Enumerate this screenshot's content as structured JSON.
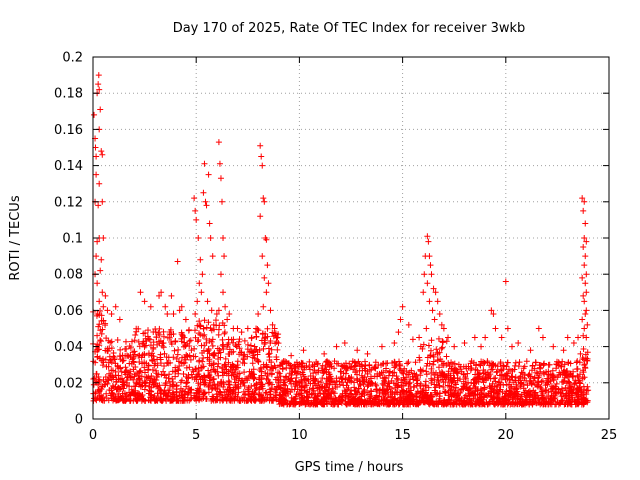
{
  "chart_data": {
    "type": "scatter",
    "title": "Day 170 of 2025, Rate Of TEC Index for receiver 3wkb",
    "xlabel": "GPS time / hours",
    "ylabel": "ROTI / TECUs",
    "xlim": [
      0,
      25
    ],
    "ylim": [
      0,
      0.2
    ],
    "x_ticks": [
      "0",
      "5",
      "10",
      "15",
      "20",
      "25"
    ],
    "y_ticks": [
      "0",
      "0.02",
      "0.04",
      "0.06",
      "0.08",
      "0.1",
      "0.12",
      "0.14",
      "0.16",
      "0.18",
      "0.2"
    ],
    "grid": true,
    "marker": "+",
    "color": "#ff0000",
    "series": [
      {
        "name": "ROTI",
        "points": [
          [
            0.05,
            0.168
          ],
          [
            0.1,
            0.155
          ],
          [
            0.12,
            0.15
          ],
          [
            0.15,
            0.145
          ],
          [
            0.2,
            0.18
          ],
          [
            0.25,
            0.185
          ],
          [
            0.28,
            0.19
          ],
          [
            0.3,
            0.182
          ],
          [
            0.35,
            0.171
          ],
          [
            0.3,
            0.16
          ],
          [
            0.4,
            0.148
          ],
          [
            0.45,
            0.146
          ],
          [
            0.15,
            0.135
          ],
          [
            0.3,
            0.13
          ],
          [
            0.1,
            0.12
          ],
          [
            0.25,
            0.118
          ],
          [
            0.45,
            0.12
          ],
          [
            0.3,
            0.1
          ],
          [
            0.5,
            0.1
          ],
          [
            0.2,
            0.098
          ],
          [
            0.15,
            0.09
          ],
          [
            0.4,
            0.088
          ],
          [
            0.1,
            0.08
          ],
          [
            0.35,
            0.082
          ],
          [
            0.2,
            0.075
          ],
          [
            0.45,
            0.07
          ],
          [
            0.6,
            0.068
          ],
          [
            0.3,
            0.065
          ],
          [
            0.5,
            0.062
          ],
          [
            0.7,
            0.06
          ],
          [
            0.9,
            0.058
          ],
          [
            1.1,
            0.062
          ],
          [
            1.3,
            0.055
          ],
          [
            2.3,
            0.07
          ],
          [
            2.5,
            0.065
          ],
          [
            2.8,
            0.062
          ],
          [
            3.2,
            0.068
          ],
          [
            3.3,
            0.07
          ],
          [
            3.5,
            0.062
          ],
          [
            3.8,
            0.068
          ],
          [
            3.6,
            0.058
          ],
          [
            3.9,
            0.058
          ],
          [
            4.1,
            0.087
          ],
          [
            4.3,
            0.062
          ],
          [
            4.5,
            0.055
          ],
          [
            4.2,
            0.06
          ],
          [
            4.9,
            0.122
          ],
          [
            4.95,
            0.115
          ],
          [
            5.0,
            0.11
          ],
          [
            5.1,
            0.1
          ],
          [
            5.2,
            0.088
          ],
          [
            5.3,
            0.08
          ],
          [
            5.35,
            0.125
          ],
          [
            5.4,
            0.141
          ],
          [
            5.45,
            0.12
          ],
          [
            5.5,
            0.118
          ],
          [
            5.6,
            0.135
          ],
          [
            5.65,
            0.108
          ],
          [
            5.7,
            0.1
          ],
          [
            5.8,
            0.09
          ],
          [
            5.15,
            0.075
          ],
          [
            5.25,
            0.07
          ],
          [
            5.55,
            0.065
          ],
          [
            5.75,
            0.06
          ],
          [
            5.05,
            0.065
          ],
          [
            4.95,
            0.058
          ],
          [
            5.85,
            0.052
          ],
          [
            6.0,
            0.058
          ],
          [
            6.1,
            0.153
          ],
          [
            6.15,
            0.141
          ],
          [
            6.2,
            0.133
          ],
          [
            6.25,
            0.12
          ],
          [
            6.3,
            0.1
          ],
          [
            6.35,
            0.09
          ],
          [
            6.2,
            0.08
          ],
          [
            6.3,
            0.07
          ],
          [
            6.4,
            0.062
          ],
          [
            6.5,
            0.055
          ],
          [
            6.1,
            0.06
          ],
          [
            6.6,
            0.058
          ],
          [
            6.8,
            0.05
          ],
          [
            7.0,
            0.05
          ],
          [
            7.2,
            0.048
          ],
          [
            7.5,
            0.05
          ],
          [
            8.1,
            0.151
          ],
          [
            8.15,
            0.145
          ],
          [
            8.2,
            0.14
          ],
          [
            8.25,
            0.122
          ],
          [
            8.3,
            0.12
          ],
          [
            8.1,
            0.112
          ],
          [
            8.35,
            0.1
          ],
          [
            8.4,
            0.099
          ],
          [
            8.2,
            0.09
          ],
          [
            8.45,
            0.085
          ],
          [
            8.3,
            0.078
          ],
          [
            8.5,
            0.075
          ],
          [
            8.4,
            0.07
          ],
          [
            8.25,
            0.062
          ],
          [
            8.6,
            0.06
          ],
          [
            8.0,
            0.058
          ],
          [
            8.7,
            0.052
          ],
          [
            8.8,
            0.05
          ],
          [
            7.9,
            0.05
          ],
          [
            9.6,
            0.035
          ],
          [
            10.2,
            0.038
          ],
          [
            11.2,
            0.036
          ],
          [
            11.8,
            0.04
          ],
          [
            12.2,
            0.042
          ],
          [
            12.8,
            0.038
          ],
          [
            13.3,
            0.036
          ],
          [
            14.0,
            0.04
          ],
          [
            14.6,
            0.042
          ],
          [
            14.8,
            0.048
          ],
          [
            14.9,
            0.055
          ],
          [
            15.0,
            0.062
          ],
          [
            15.3,
            0.052
          ],
          [
            15.5,
            0.044
          ],
          [
            15.8,
            0.045
          ],
          [
            16.0,
            0.07
          ],
          [
            16.05,
            0.08
          ],
          [
            16.1,
            0.09
          ],
          [
            16.2,
            0.101
          ],
          [
            16.25,
            0.098
          ],
          [
            16.3,
            0.09
          ],
          [
            16.35,
            0.085
          ],
          [
            16.4,
            0.08
          ],
          [
            16.2,
            0.075
          ],
          [
            16.5,
            0.072
          ],
          [
            16.6,
            0.07
          ],
          [
            16.3,
            0.065
          ],
          [
            16.7,
            0.065
          ],
          [
            16.45,
            0.06
          ],
          [
            16.8,
            0.058
          ],
          [
            16.55,
            0.055
          ],
          [
            16.9,
            0.052
          ],
          [
            16.15,
            0.05
          ],
          [
            17.0,
            0.05
          ],
          [
            17.2,
            0.045
          ],
          [
            17.5,
            0.04
          ],
          [
            18.0,
            0.042
          ],
          [
            18.5,
            0.045
          ],
          [
            18.8,
            0.04
          ],
          [
            19.0,
            0.045
          ],
          [
            19.3,
            0.06
          ],
          [
            19.4,
            0.058
          ],
          [
            19.5,
            0.05
          ],
          [
            19.8,
            0.045
          ],
          [
            20.0,
            0.076
          ],
          [
            20.1,
            0.05
          ],
          [
            20.3,
            0.04
          ],
          [
            20.6,
            0.042
          ],
          [
            21.2,
            0.038
          ],
          [
            21.6,
            0.05
          ],
          [
            21.8,
            0.045
          ],
          [
            22.3,
            0.04
          ],
          [
            22.8,
            0.038
          ],
          [
            23.0,
            0.045
          ],
          [
            23.3,
            0.042
          ],
          [
            23.5,
            0.045
          ],
          [
            23.7,
            0.122
          ],
          [
            23.75,
            0.115
          ],
          [
            23.8,
            0.12
          ],
          [
            23.85,
            0.108
          ],
          [
            23.8,
            0.1
          ],
          [
            23.9,
            0.098
          ],
          [
            23.75,
            0.095
          ],
          [
            23.85,
            0.09
          ],
          [
            23.8,
            0.085
          ],
          [
            23.9,
            0.08
          ],
          [
            23.7,
            0.078
          ],
          [
            23.85,
            0.075
          ],
          [
            23.9,
            0.07
          ],
          [
            23.75,
            0.068
          ],
          [
            23.8,
            0.065
          ],
          [
            23.9,
            0.06
          ],
          [
            23.85,
            0.058
          ],
          [
            23.7,
            0.055
          ],
          [
            23.95,
            0.052
          ],
          [
            23.8,
            0.05
          ],
          [
            23.75,
            0.046
          ],
          [
            23.9,
            0.045
          ]
        ],
        "bands": [
          {
            "x": [
              0.0,
              0.6
            ],
            "y": [
              0.01,
              0.06
            ]
          },
          {
            "x": [
              0.6,
              2.0
            ],
            "y": [
              0.01,
              0.045
            ]
          },
          {
            "x": [
              2.0,
              4.8
            ],
            "y": [
              0.01,
              0.05
            ]
          },
          {
            "x": [
              4.8,
              6.4
            ],
            "y": [
              0.01,
              0.055
            ]
          },
          {
            "x": [
              6.4,
              7.8
            ],
            "y": [
              0.01,
              0.045
            ]
          },
          {
            "x": [
              7.8,
              9.0
            ],
            "y": [
              0.01,
              0.05
            ]
          },
          {
            "x": [
              9.0,
              15.8
            ],
            "y": [
              0.008,
              0.032
            ]
          },
          {
            "x": [
              15.8,
              17.2
            ],
            "y": [
              0.008,
              0.045
            ]
          },
          {
            "x": [
              17.2,
              23.6
            ],
            "y": [
              0.008,
              0.032
            ]
          },
          {
            "x": [
              23.6,
              24.0
            ],
            "y": [
              0.008,
              0.04
            ]
          }
        ]
      }
    ]
  }
}
